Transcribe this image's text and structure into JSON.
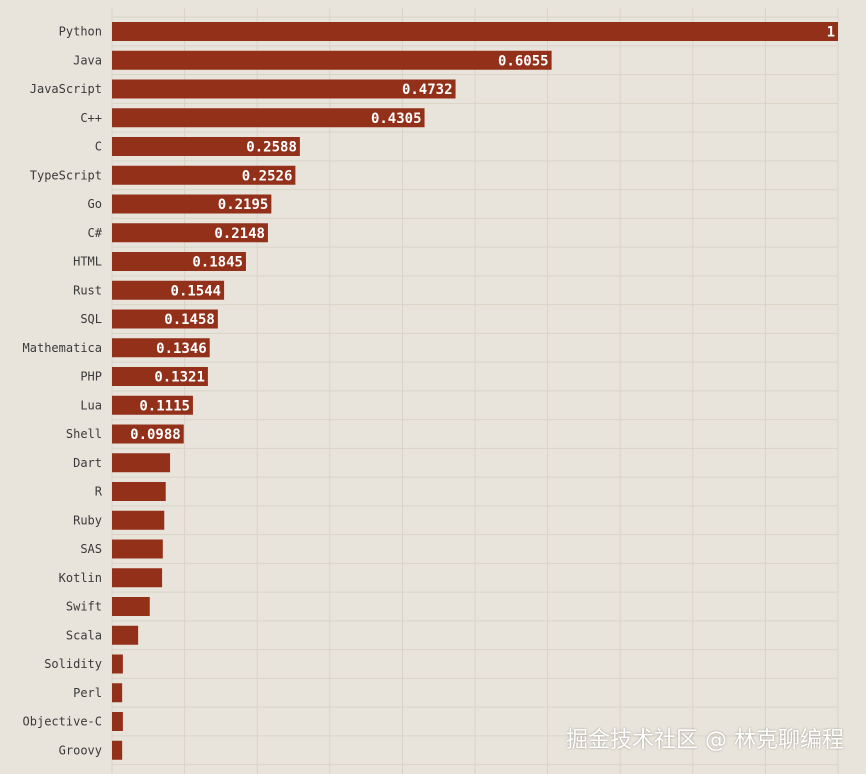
{
  "chart_data": {
    "type": "bar",
    "orientation": "horizontal",
    "categories": [
      "Python",
      "Java",
      "JavaScript",
      "C++",
      "C",
      "TypeScript",
      "Go",
      "C#",
      "HTML",
      "Rust",
      "SQL",
      "Mathematica",
      "PHP",
      "Lua",
      "Shell",
      "Dart",
      "R",
      "Ruby",
      "SAS",
      "Kotlin",
      "Swift",
      "Scala",
      "Solidity",
      "Perl",
      "Objective-C",
      "Groovy"
    ],
    "values": [
      1,
      0.6055,
      0.4732,
      0.4305,
      0.2588,
      0.2526,
      0.2195,
      0.2148,
      0.1845,
      0.1544,
      0.1458,
      0.1346,
      0.1321,
      0.1115,
      0.0988,
      0.08,
      0.074,
      0.072,
      0.07,
      0.069,
      0.052,
      0.036,
      0.015,
      0.014,
      0.015,
      0.014
    ],
    "value_labels": [
      "1",
      "0.6055",
      "0.4732",
      "0.4305",
      "0.2588",
      "0.2526",
      "0.2195",
      "0.2148",
      "0.1845",
      "0.1544",
      "0.1458",
      "0.1346",
      "0.1321",
      "0.1115",
      "0.0988",
      "",
      "",
      "",
      "",
      "",
      "",
      "",
      "",
      "",
      "",
      ""
    ],
    "xlim": [
      0,
      1
    ],
    "grid": true,
    "bar_color": "#93301a",
    "background": "#e9e4db"
  },
  "watermark": "掘金技术社区 @ 林克聊编程"
}
